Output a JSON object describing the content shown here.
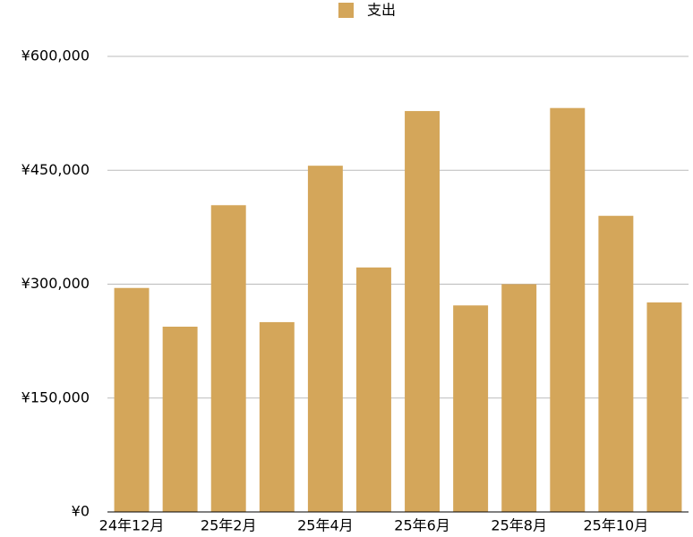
{
  "chart_data": {
    "type": "bar",
    "categories": [
      "24年12月",
      null,
      "25年2月",
      null,
      "25年4月",
      null,
      "25年6月",
      null,
      "25年8月",
      null,
      "25年10月",
      null
    ],
    "series": [
      {
        "name": "支出",
        "color": "#d4a65a",
        "values": [
          295000,
          244000,
          404000,
          250000,
          456000,
          322000,
          528000,
          272000,
          300000,
          532000,
          390000,
          276000
        ]
      }
    ],
    "ylim": [
      0,
      600000
    ],
    "yticks": [
      {
        "value": 0,
        "label": "¥0"
      },
      {
        "value": 150000,
        "label": "¥150,000"
      },
      {
        "value": 300000,
        "label": "¥300,000"
      },
      {
        "value": 450000,
        "label": "¥450,000"
      },
      {
        "value": 600000,
        "label": "¥600,000"
      }
    ],
    "grid": true,
    "legend": "top"
  }
}
